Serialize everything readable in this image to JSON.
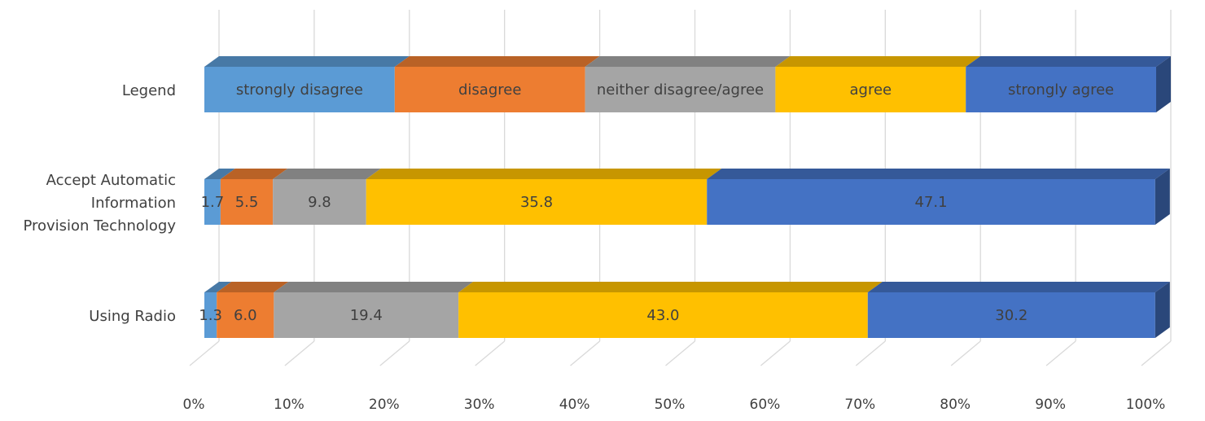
{
  "chart_data": {
    "type": "bar",
    "orientation": "horizontal",
    "stacked": "percent",
    "style": "3d",
    "x_tick_labels": [
      "0%",
      "10%",
      "20%",
      "30%",
      "40%",
      "50%",
      "60%",
      "70%",
      "80%",
      "90%",
      "100%"
    ],
    "categories": [
      "Legend",
      "Accept Automatic Information Provision Technology",
      "Using Radio"
    ],
    "category_lines": [
      [
        "Legend"
      ],
      [
        "Accept Automatic",
        "Information",
        "Provision Technology"
      ],
      [
        "Using Radio"
      ]
    ],
    "series": [
      {
        "key": "strongly disagree",
        "color": "#5b9bd5",
        "values": [
          20,
          1.7,
          1.3
        ]
      },
      {
        "key": "disagree",
        "color": "#ed7d31",
        "values": [
          20,
          5.5,
          6.0
        ]
      },
      {
        "key": "neither disagree/agree",
        "color": "#a5a5a5",
        "values": [
          20,
          9.8,
          19.4
        ]
      },
      {
        "key": "agree",
        "color": "#ffc000",
        "values": [
          20,
          35.8,
          43.0
        ]
      },
      {
        "key": "strongly agree",
        "color": "#4472c4",
        "values": [
          20,
          47.1,
          30.2
        ]
      }
    ],
    "segment_labels": [
      [
        "strongly disagree",
        "disagree",
        "neither disagree/agree",
        "agree",
        "strongly agree"
      ],
      [
        "1.7",
        "5.5",
        "9.8",
        "35.8",
        "47.1"
      ],
      [
        "1.3",
        "6.0",
        "19.4",
        "43.0",
        "30.2"
      ]
    ],
    "xlim": [
      0,
      100
    ],
    "grid": true,
    "legend": "none"
  }
}
